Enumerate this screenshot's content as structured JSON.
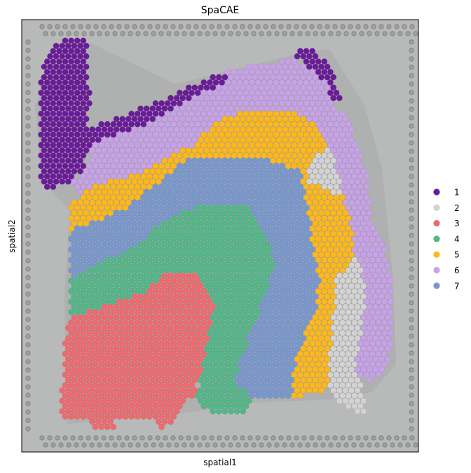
{
  "chart_data": {
    "type": "scatter",
    "title": "SpaCAE",
    "xlabel": "spatial1",
    "ylabel": "spatial2",
    "grid": false,
    "xticks": false,
    "yticks": false,
    "legend_position": "right",
    "background": "tissue-image",
    "series": [
      {
        "name": "1",
        "color": "#6a1b9a"
      },
      {
        "name": "2",
        "color": "#d3d3d3"
      },
      {
        "name": "3",
        "color": "#ee6a6f"
      },
      {
        "name": "4",
        "color": "#52b788"
      },
      {
        "name": "5",
        "color": "#ffb81c"
      },
      {
        "name": "6",
        "color": "#c8a2e8"
      },
      {
        "name": "7",
        "color": "#7897cf"
      }
    ]
  }
}
